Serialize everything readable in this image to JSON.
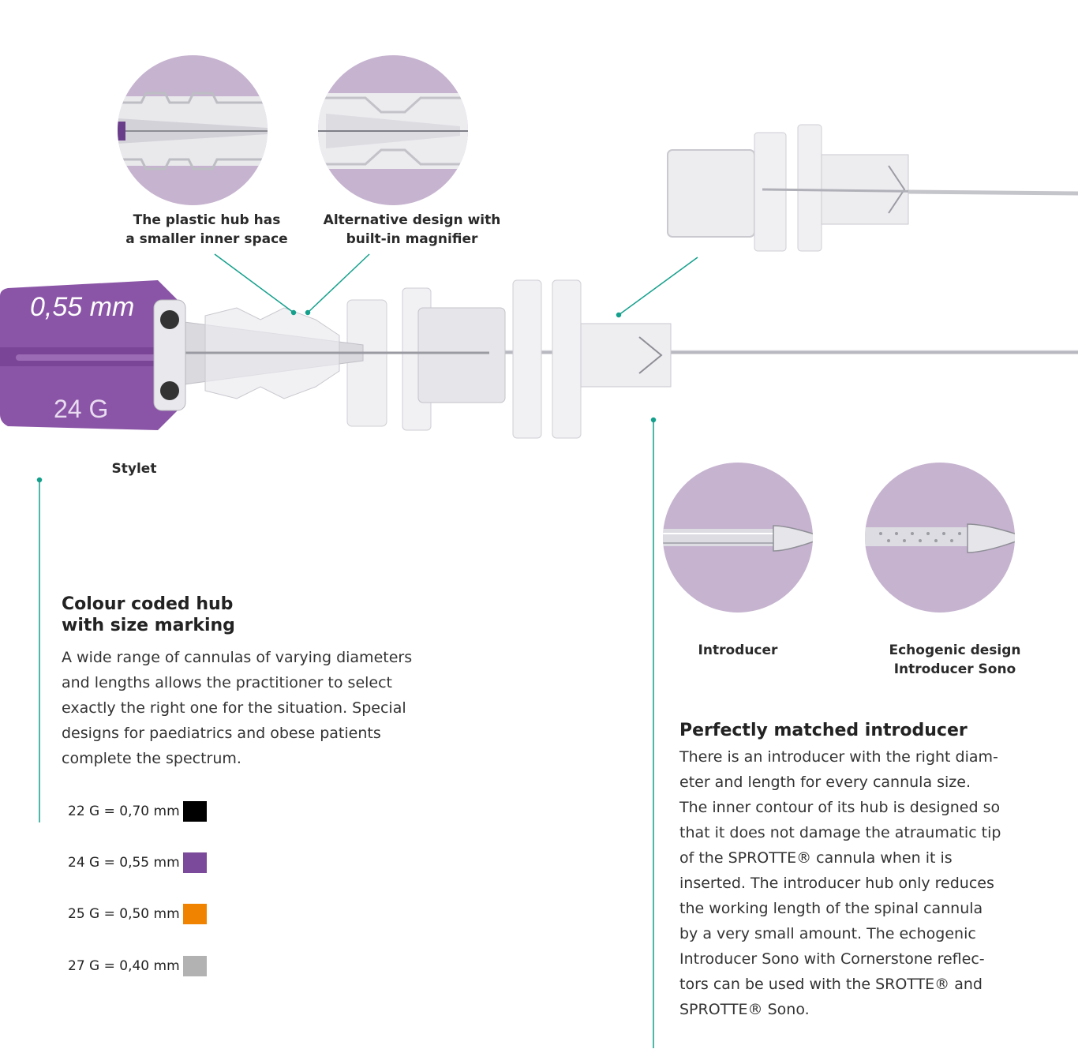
{
  "captions": {
    "plastic_hub_line1": "The plastic hub has",
    "plastic_hub_line2": "a smaller inner space",
    "magnifier_line1": "Alternative design with",
    "magnifier_line2": "built-in magnifier",
    "stylet": "Stylet",
    "introducer": "Introducer",
    "echogenic_line1": "Echogenic design",
    "echogenic_line2": "Introducer Sono"
  },
  "hub_labels": {
    "size_mm": "0,55 mm",
    "gauge": "24 G"
  },
  "colour_section": {
    "heading_line1": "Colour coded hub",
    "heading_line2": "with size marking",
    "body_lines": [
      "A wide range of cannulas of varying diameters",
      "and lengths allows the practitioner to select",
      "exactly the right one for the situation. Special",
      "designs for paediatrics and obese patients",
      "complete the spectrum."
    ]
  },
  "legend": [
    {
      "label": "22 G = 0,70 mm",
      "color": "#000000"
    },
    {
      "label": "24 G = 0,55 mm",
      "color": "#7b4a9a"
    },
    {
      "label": "25 G = 0,50 mm",
      "color": "#f08300"
    },
    {
      "label": "27 G = 0,40 mm",
      "color": "#b2b2b2"
    }
  ],
  "introducer_section": {
    "heading": "Perfectly matched introducer",
    "body_lines": [
      "There is an introducer with the right diam-",
      "eter and length for every cannula size.",
      "The inner contour of its hub is designed so",
      "that it does not damage the atraumatic tip",
      "of the SPROTTE® cannula when it is",
      "inserted. The introducer hub only reduces",
      "the working length of the spinal cannula",
      "by a very small amount. The echogenic",
      "Introducer Sono with Cornerstone reflec-",
      "tors can be used with the SROTTE® and",
      "SPROTTE® Sono."
    ]
  },
  "colors": {
    "accent_line": "#14a08c",
    "circle_bg": "#c6b3cf",
    "hub_purple": "#8a55a6"
  }
}
